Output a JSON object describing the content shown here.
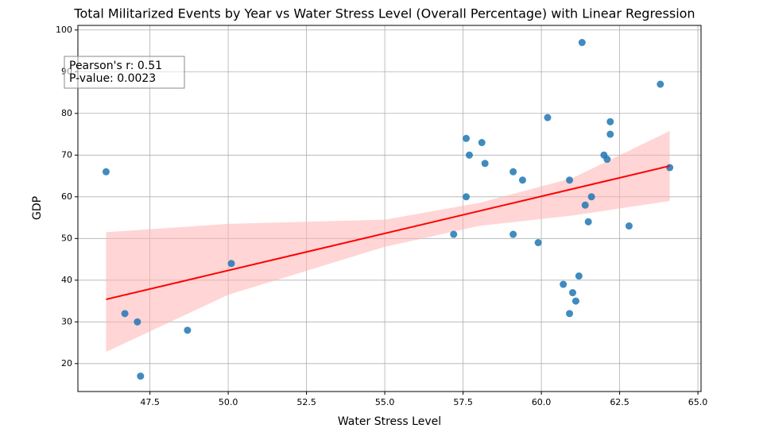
{
  "chart_data": {
    "type": "scatter",
    "title": "Total Militarized Events by Year vs Water Stress Level (Overall Percentage) with Linear Regression",
    "x_label": "Water Stress Level",
    "y_label": "GDP",
    "annotation": [
      "Pearson's r: 0.51",
      "P-value: 0.0023"
    ],
    "color": "#1f77b4",
    "x": [
      46.1,
      46.7,
      47.1,
      47.2,
      48.7,
      50.1,
      57.2,
      57.6,
      57.7,
      57.6,
      58.1,
      58.2,
      59.1,
      59.4,
      59.1,
      59.9,
      60.2,
      60.7,
      60.9,
      60.9,
      61.0,
      61.1,
      61.2,
      61.3,
      61.4,
      61.5,
      61.6,
      62.0,
      62.1,
      62.2,
      62.2,
      62.8,
      63.8,
      64.1
    ],
    "values": [
      66,
      32,
      30,
      17,
      28,
      44,
      51,
      74,
      70,
      60,
      73,
      68,
      66,
      64,
      51,
      49,
      79,
      39,
      64,
      32,
      37,
      35,
      41,
      97,
      58,
      54,
      60,
      70,
      69,
      78,
      75,
      53,
      87,
      67
    ],
    "regression": {
      "color": "#ff0000",
      "x": [
        46.1,
        64.1
      ],
      "y": [
        35.4,
        67.4
      ]
    },
    "band": {
      "color": "#ffb3b3",
      "x": [
        46.1,
        50,
        55,
        58,
        61,
        64.1
      ],
      "upper": [
        51.5,
        53.5,
        54.5,
        58.5,
        64.5,
        75.8
      ],
      "lower": [
        22.8,
        36.5,
        48,
        53,
        55.5,
        59
      ]
    },
    "xlim": [
      45.2,
      65.1
    ],
    "ylim": [
      13.3,
      101.1
    ],
    "xticks": [
      47.5,
      {
        "value": 50,
        "label": "50.0"
      },
      52.5,
      {
        "value": 55,
        "label": "55.0"
      },
      57.5,
      {
        "value": 60,
        "label": "60.0"
      },
      62.5,
      {
        "value": 65,
        "label": "65.0"
      }
    ],
    "yticks": [
      20,
      30,
      40,
      50,
      60,
      70,
      80,
      90,
      100
    ],
    "grid": true
  }
}
